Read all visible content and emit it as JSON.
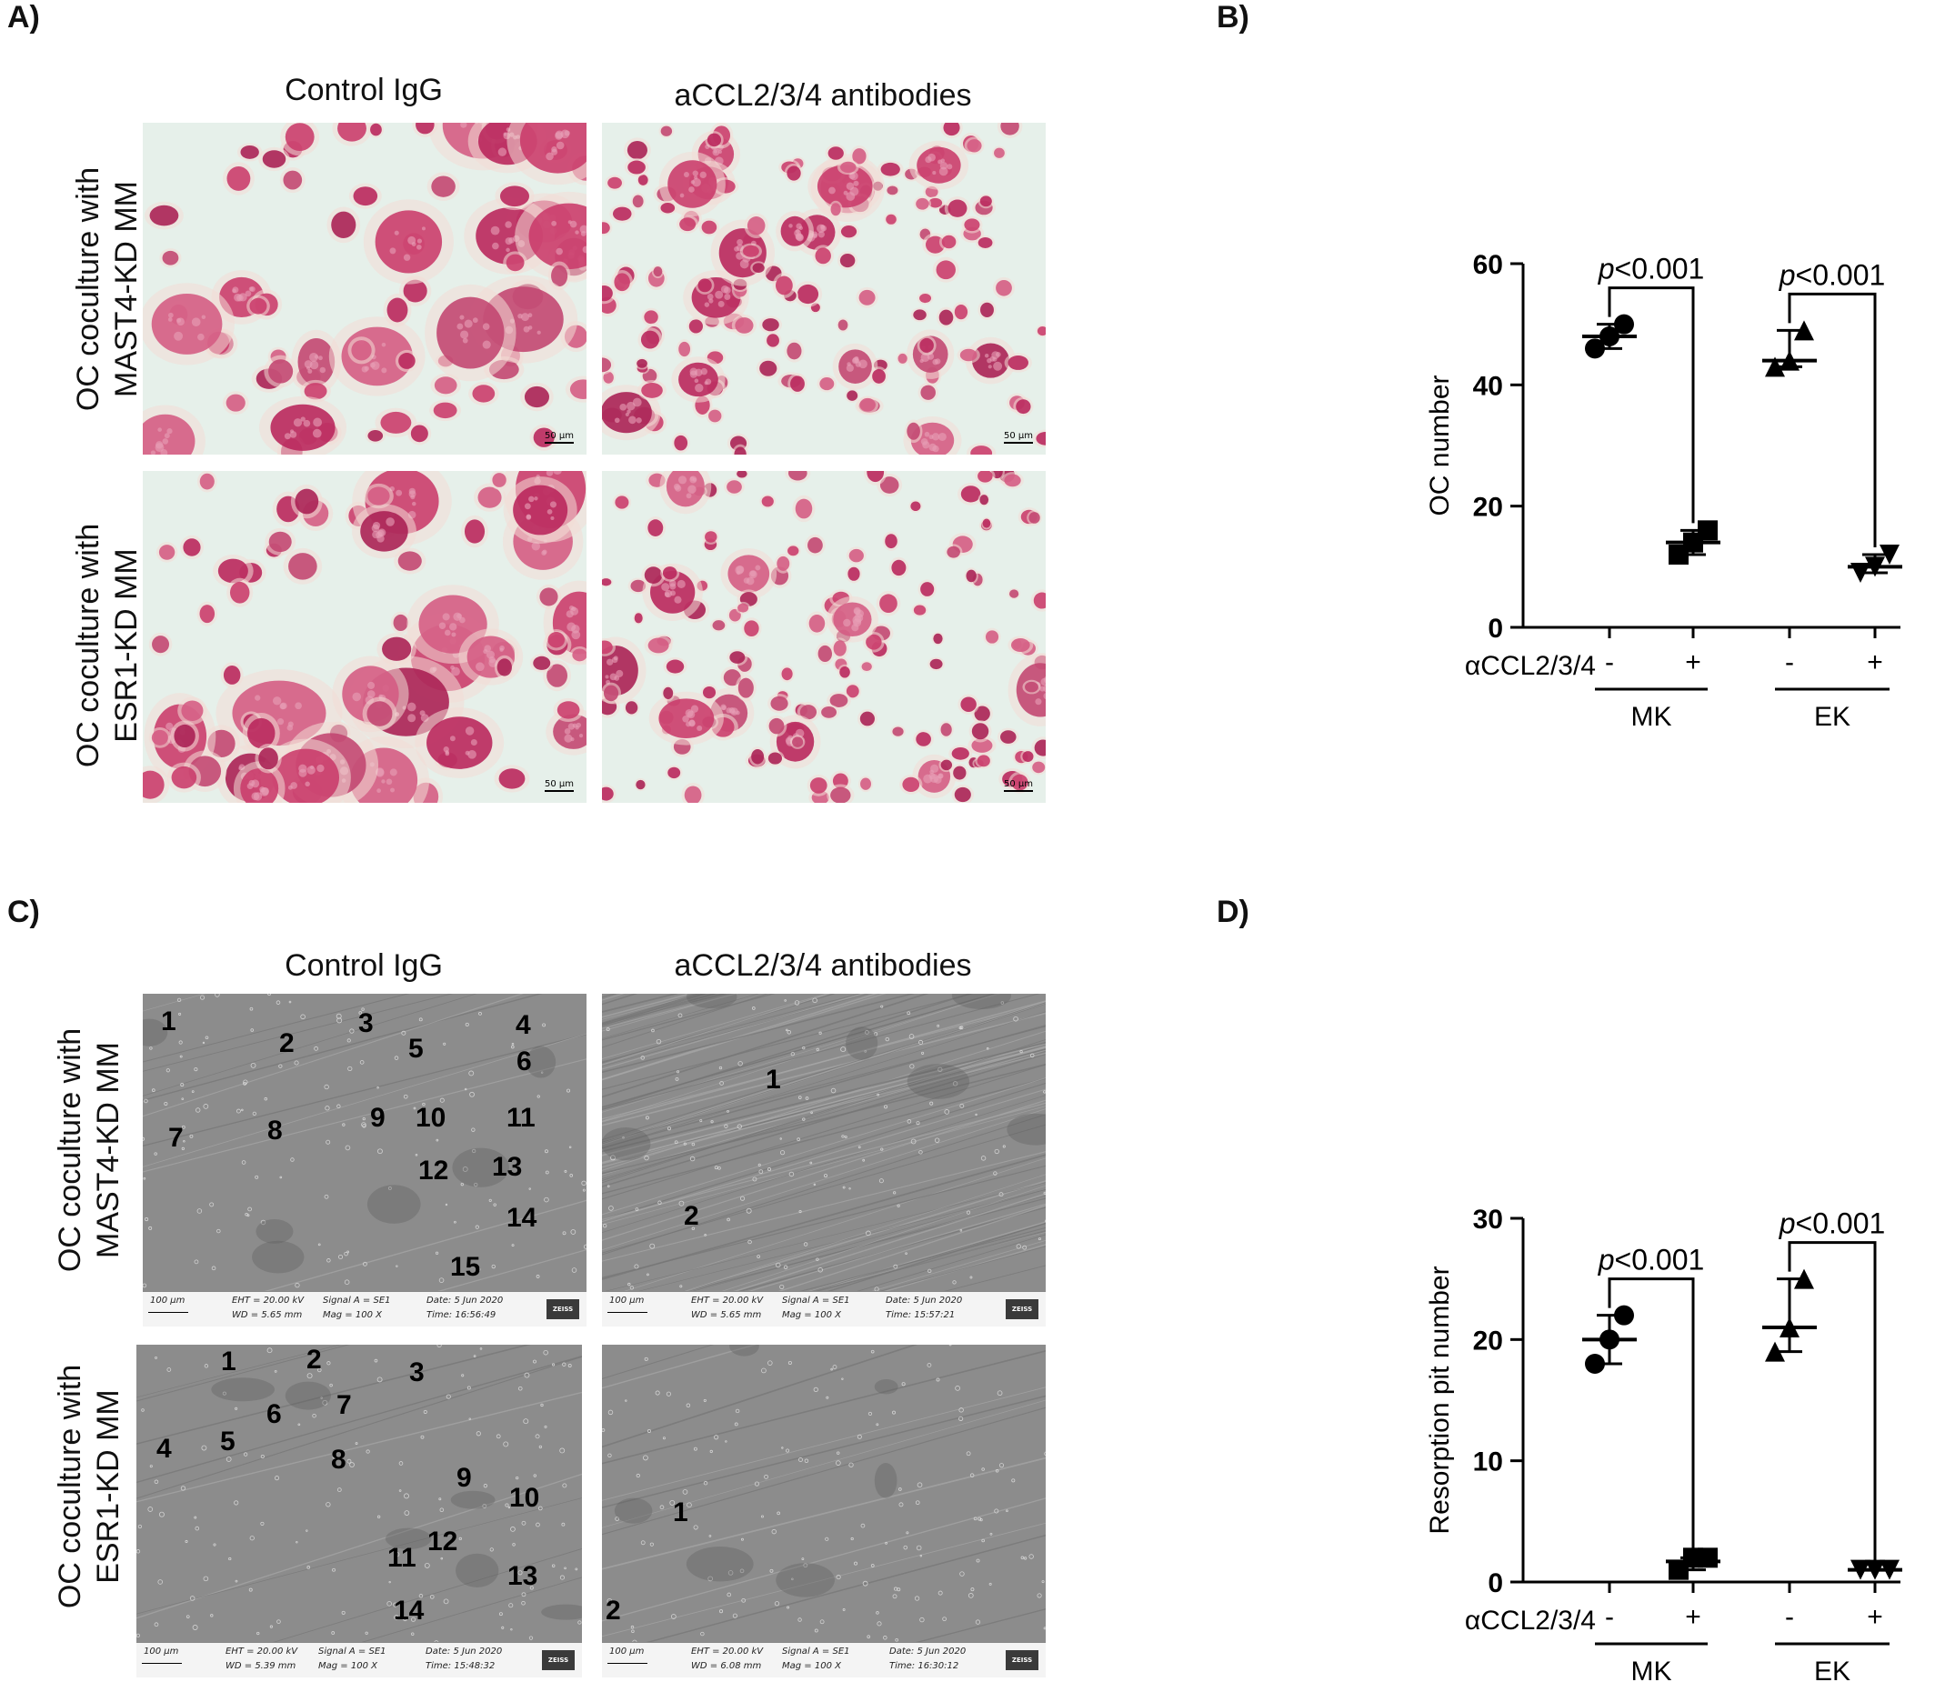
{
  "panels": {
    "a": {
      "letter": "A)",
      "col_titles": [
        "Control IgG",
        "aCCL2/3/4 antibodies"
      ],
      "row_labels": [
        [
          "OC coculture with",
          "MAST4-KD MM"
        ],
        [
          "OC coculture with",
          "ESR1-KD MM"
        ]
      ],
      "scale_label": "50 μm"
    },
    "b": {
      "letter": "B)"
    },
    "c": {
      "letter": "C)",
      "col_titles": [
        "Control IgG",
        "aCCL2/3/4 antibodies"
      ],
      "row_labels": [
        [
          "OC coculture with",
          "MAST4-KD MM"
        ],
        [
          "OC coculture with",
          "ESR1-KD MM"
        ]
      ],
      "sem_images": [
        {
          "pits": [
            "1",
            "2",
            "3",
            "4",
            "5",
            "6",
            "7",
            "8",
            "9",
            "10",
            "11",
            "12",
            "13",
            "14",
            "15"
          ],
          "scale": "100 μm",
          "eht": "EHT = 20.00 kV",
          "wd": "WD = 5.65 mm",
          "signal": "Signal A = SE1",
          "mag": "Mag =    100 X",
          "date": "Date: 5 Jun 2020",
          "time": "Time: 16:56:49",
          "brand": "ZEISS"
        },
        {
          "pits": [
            "1",
            "2"
          ],
          "scale": "100 μm",
          "eht": "EHT = 20.00 kV",
          "wd": "WD = 5.65 mm",
          "signal": "Signal A = SE1",
          "mag": "Mag =    100 X",
          "date": "Date: 5 Jun 2020",
          "time": "Time: 15:57:21",
          "brand": "ZEISS"
        },
        {
          "pits": [
            "1",
            "2",
            "3",
            "4",
            "5",
            "6",
            "7",
            "8",
            "9",
            "10",
            "11",
            "12",
            "13",
            "14"
          ],
          "scale": "100 μm",
          "eht": "EHT = 20.00 kV",
          "wd": "WD = 5.39 mm",
          "signal": "Signal A = SE1",
          "mag": "Mag =    100 X",
          "date": "Date: 5 Jun 2020",
          "time": "Time: 15:48:32",
          "brand": "ZEISS"
        },
        {
          "pits": [
            "1",
            "2"
          ],
          "scale": "100 μm",
          "eht": "EHT = 20.00 kV",
          "wd": "WD = 6.08 mm",
          "signal": "Signal A = SE1",
          "mag": "Mag =    100 X",
          "date": "Date: 5 Jun 2020",
          "time": "Time: 16:30:12",
          "brand": "ZEISS"
        }
      ]
    },
    "d": {
      "letter": "D)"
    }
  },
  "chart_data": [
    {
      "type": "scatter",
      "panel": "B)",
      "ylabel": "OC number",
      "ylim": [
        0,
        60
      ],
      "yticks": [
        "0",
        "20",
        "40",
        "60"
      ],
      "treatment_label": "αCCL2/3/4",
      "treatment_ticks": [
        "-",
        "+",
        "-",
        "+"
      ],
      "groups": [
        "MK",
        "EK"
      ],
      "series": [
        {
          "group": "MK",
          "treatment": "-",
          "marker": "circle",
          "mean": 48,
          "err": [
            46,
            50
          ],
          "points": [
            50,
            48,
            46
          ]
        },
        {
          "group": "MK",
          "treatment": "+",
          "marker": "square",
          "mean": 14,
          "err": [
            12,
            16
          ],
          "points": [
            16,
            14,
            12
          ]
        },
        {
          "group": "EK",
          "treatment": "-",
          "marker": "triangle-up",
          "mean": 44,
          "err": [
            43,
            49
          ],
          "points": [
            49,
            44,
            43
          ]
        },
        {
          "group": "EK",
          "treatment": "+",
          "marker": "triangle-down",
          "mean": 10,
          "err": [
            9,
            12
          ],
          "points": [
            12,
            10,
            9
          ]
        }
      ],
      "annotations": [
        {
          "text_italic": "p",
          "text": "<0.001",
          "from": 0,
          "to": 1
        },
        {
          "text_italic": "p",
          "text": "<0.001",
          "from": 2,
          "to": 3
        }
      ]
    },
    {
      "type": "scatter",
      "panel": "D)",
      "ylabel": "Resorption pit number",
      "ylim": [
        0,
        30
      ],
      "yticks": [
        "0",
        "10",
        "20",
        "30"
      ],
      "treatment_label": "αCCL2/3/4",
      "treatment_ticks": [
        "-",
        "+",
        "-",
        "+"
      ],
      "groups": [
        "MK",
        "EK"
      ],
      "series": [
        {
          "group": "MK",
          "treatment": "-",
          "marker": "circle",
          "mean": 20,
          "err": [
            18,
            22
          ],
          "points": [
            22,
            20,
            18
          ]
        },
        {
          "group": "MK",
          "treatment": "+",
          "marker": "square",
          "mean": 1.7,
          "err": [
            1,
            2
          ],
          "points": [
            2,
            2,
            1
          ]
        },
        {
          "group": "EK",
          "treatment": "-",
          "marker": "triangle-up",
          "mean": 21,
          "err": [
            19,
            25
          ],
          "points": [
            25,
            21,
            19
          ]
        },
        {
          "group": "EK",
          "treatment": "+",
          "marker": "triangle-down",
          "mean": 1,
          "err": [
            1,
            1
          ],
          "points": [
            1,
            1,
            1
          ]
        }
      ],
      "annotations": [
        {
          "text_italic": "p",
          "text": "<0.001",
          "from": 0,
          "to": 1
        },
        {
          "text_italic": "p",
          "text": "<0.001",
          "from": 2,
          "to": 3
        }
      ]
    }
  ]
}
